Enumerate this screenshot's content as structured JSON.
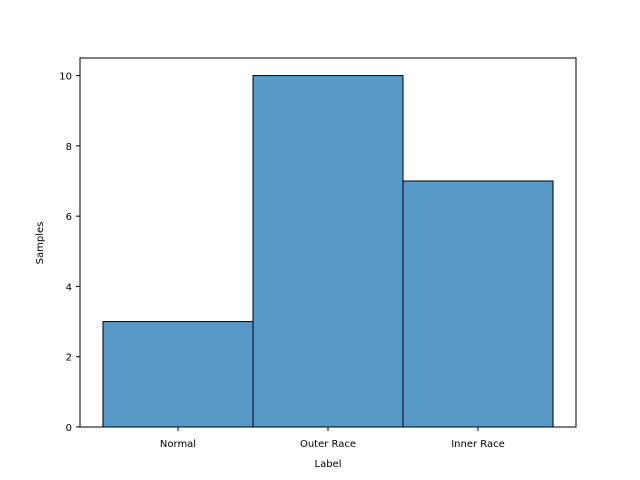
{
  "chart_data": {
    "type": "bar",
    "categories": [
      "Normal",
      "Outer Race",
      "Inner Race"
    ],
    "values": [
      3,
      10,
      7
    ],
    "xlabel": "Label",
    "ylabel": "Samples",
    "ylim": [
      0,
      10.5
    ],
    "yticks": [
      0,
      2,
      4,
      6,
      8,
      10
    ],
    "grid": false,
    "bar_color": "#5799c7",
    "edge_color": "#000000"
  }
}
